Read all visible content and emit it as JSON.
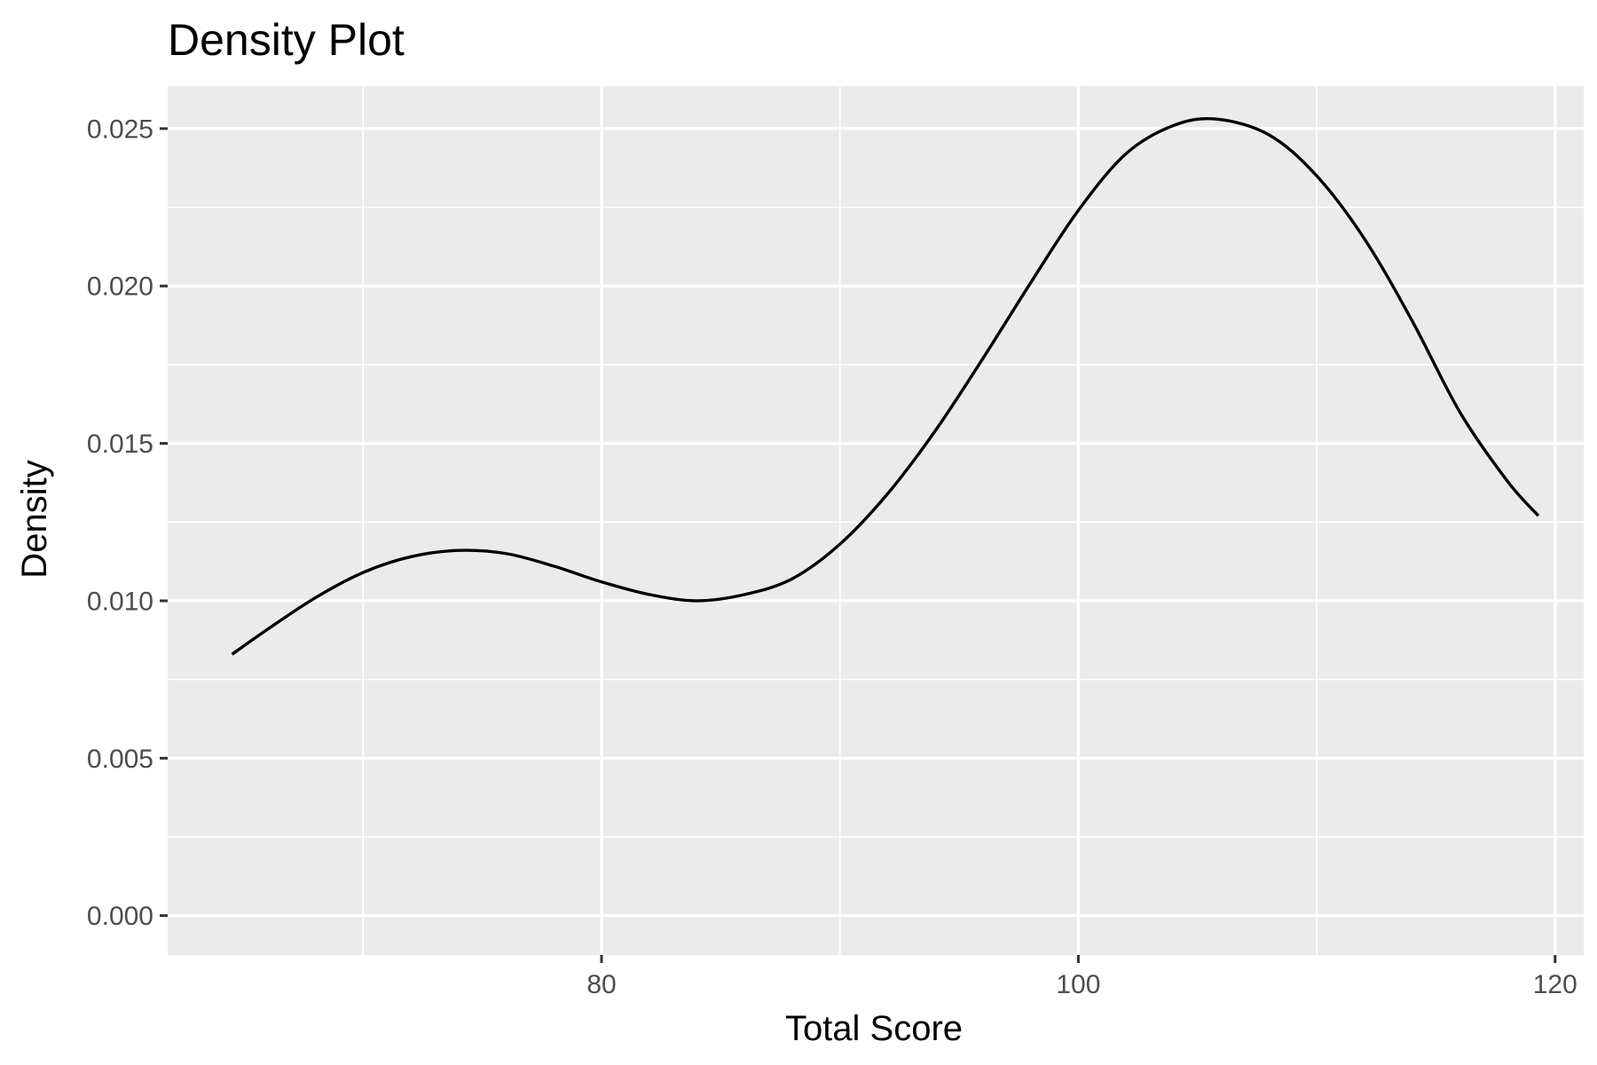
{
  "chart_data": {
    "type": "line",
    "title": "Density Plot",
    "xlabel": "Total Score",
    "ylabel": "Density",
    "xlim": [
      61.8,
      121.2
    ],
    "ylim": [
      -0.00125,
      0.02635
    ],
    "x_ticks": [
      80,
      100,
      120
    ],
    "x_minor_ticks": [
      70,
      90,
      110
    ],
    "y_ticks": [
      0.0,
      0.005,
      0.01,
      0.015,
      0.02,
      0.025
    ],
    "y_tick_labels": [
      "0.000",
      "0.005",
      "0.010",
      "0.015",
      "0.020",
      "0.025"
    ],
    "grid": true,
    "series": [
      {
        "points": [
          [
            64.5,
            0.0083
          ],
          [
            66.0,
            0.0091
          ],
          [
            68.0,
            0.0101
          ],
          [
            70.0,
            0.0109
          ],
          [
            72.0,
            0.0114
          ],
          [
            74.0,
            0.0116
          ],
          [
            76.0,
            0.0115
          ],
          [
            78.0,
            0.0111
          ],
          [
            80.0,
            0.0106
          ],
          [
            82.0,
            0.0102
          ],
          [
            84.0,
            0.01
          ],
          [
            86.0,
            0.0102
          ],
          [
            88.0,
            0.0107
          ],
          [
            90.0,
            0.0118
          ],
          [
            92.0,
            0.0134
          ],
          [
            94.0,
            0.0154
          ],
          [
            96.0,
            0.0177
          ],
          [
            98.0,
            0.0201
          ],
          [
            100.0,
            0.0224
          ],
          [
            102.0,
            0.0242
          ],
          [
            104.0,
            0.0251
          ],
          [
            105.8,
            0.0253
          ],
          [
            108.0,
            0.0248
          ],
          [
            110.0,
            0.0235
          ],
          [
            112.0,
            0.0215
          ],
          [
            114.0,
            0.0189
          ],
          [
            116.0,
            0.016
          ],
          [
            118.0,
            0.0138
          ],
          [
            119.3,
            0.0127
          ]
        ]
      }
    ]
  },
  "colors": {
    "panel_background": "#ebebeb",
    "grid_major": "#ffffff",
    "grid_minor": "#ffffff",
    "line": "#000000",
    "tick_text": "#4d4d4d",
    "tick_mark": "#333333"
  }
}
